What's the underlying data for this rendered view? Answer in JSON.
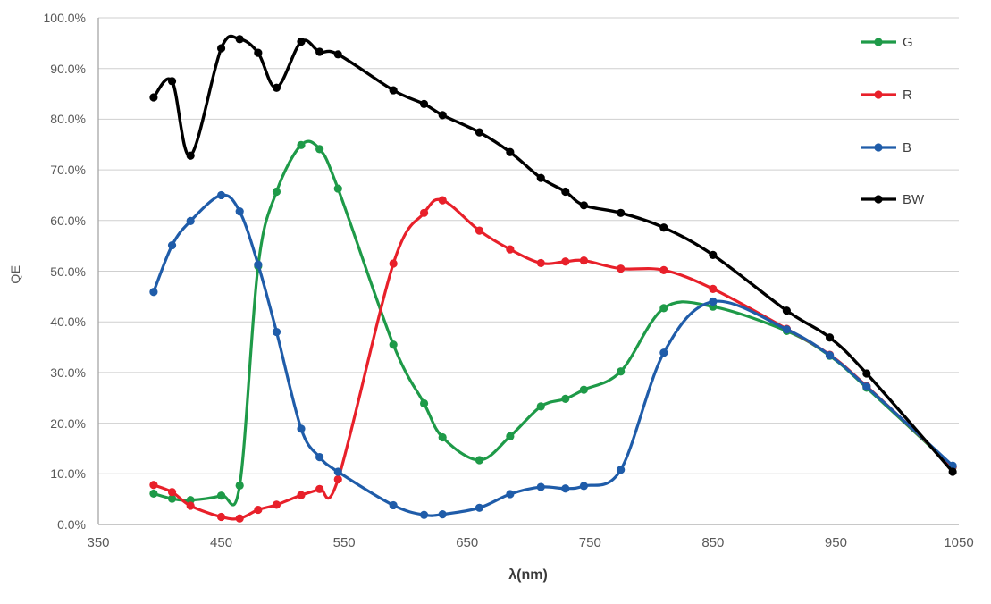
{
  "chart_data": {
    "type": "line",
    "title": "",
    "xlabel": "λ(nm)",
    "ylabel": "QE",
    "xlim": [
      350,
      1050
    ],
    "ylim": [
      0,
      100
    ],
    "grid": "horizontal",
    "line_style": "smooth",
    "marker": "circle",
    "legend_position": "inside-top-right",
    "x_tick_labels": [
      "350",
      "450",
      "550",
      "650",
      "750",
      "850",
      "950",
      "1050"
    ],
    "x_tick_values": [
      350,
      450,
      550,
      650,
      750,
      850,
      950,
      1050
    ],
    "y_tick_labels": [
      "100.0%",
      "90.0%",
      "80.0%",
      "70.0%",
      "60.0%",
      "50.0%",
      "40.0%",
      "30.0%",
      "20.0%",
      "10.0%",
      "0.0%"
    ],
    "y_tick_values": [
      100,
      90,
      80,
      70,
      60,
      50,
      40,
      30,
      20,
      10,
      0
    ],
    "x": [
      395,
      410,
      425,
      450,
      465,
      480,
      495,
      515,
      530,
      545,
      590,
      615,
      630,
      660,
      685,
      710,
      730,
      745,
      775,
      810,
      850,
      910,
      945,
      975,
      1045
    ],
    "series": [
      {
        "name": "G",
        "color": "#1E9A48",
        "values": [
          6.1,
          5.1,
          4.8,
          5.7,
          7.7,
          51.0,
          65.7,
          74.9,
          74.1,
          66.3,
          35.5,
          23.9,
          17.2,
          12.7,
          17.4,
          23.3,
          24.8,
          26.6,
          30.2,
          42.7,
          43.0,
          38.2,
          33.3,
          27.0,
          11.3
        ]
      },
      {
        "name": "R",
        "color": "#E8202A",
        "values": [
          7.8,
          6.4,
          3.7,
          1.5,
          1.2,
          2.9,
          3.9,
          5.8,
          7.0,
          8.9,
          51.5,
          61.5,
          64.0,
          58.0,
          54.3,
          51.6,
          51.9,
          52.1,
          50.5,
          50.2,
          46.5,
          38.6,
          33.5,
          27.3,
          11.4
        ]
      },
      {
        "name": "B",
        "color": "#1F5CA9",
        "values": [
          45.9,
          55.1,
          59.9,
          65.0,
          61.8,
          51.3,
          38.0,
          18.9,
          13.3,
          10.4,
          3.8,
          1.9,
          2.0,
          3.3,
          6.0,
          7.4,
          7.1,
          7.6,
          10.8,
          33.9,
          44.0,
          38.5,
          33.4,
          27.2,
          11.6
        ]
      },
      {
        "name": "BW",
        "color": "#000000",
        "values": [
          84.3,
          87.5,
          72.8,
          94.0,
          95.8,
          93.1,
          86.2,
          95.3,
          93.3,
          92.8,
          85.7,
          83.0,
          80.8,
          77.4,
          73.5,
          68.4,
          65.7,
          63.0,
          61.5,
          58.6,
          53.2,
          42.2,
          36.9,
          29.8,
          10.4
        ]
      }
    ],
    "colors": {
      "background": "#FFFFFF",
      "gridline": "#CFCFCF",
      "axis_line": "#A6A6A6",
      "tick_text": "#595959",
      "axis_title_text": "#3A3A3A",
      "legend_text": "#404040"
    }
  }
}
